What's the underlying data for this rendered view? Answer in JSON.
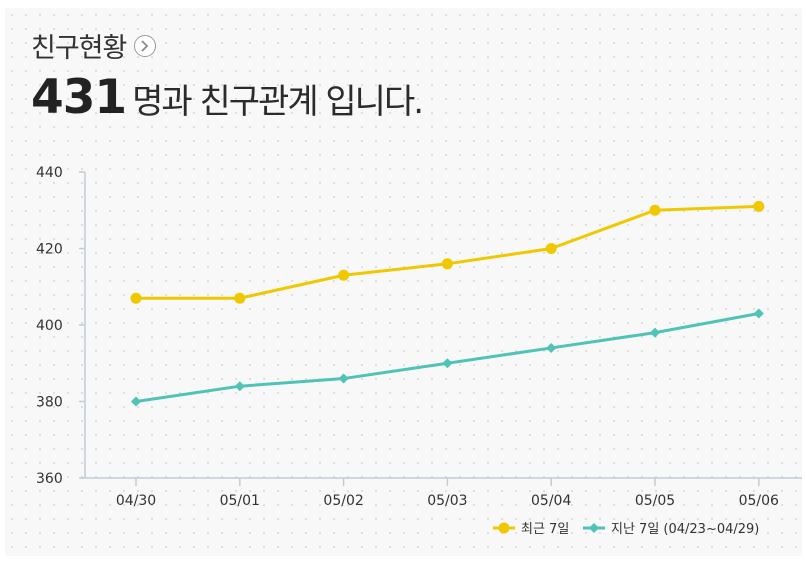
{
  "header": {
    "title": "친구현황",
    "count": "431",
    "count_suffix": "명과 친구관계 입니다."
  },
  "chart_data": {
    "type": "line",
    "categories": [
      "04/30",
      "05/01",
      "05/02",
      "05/03",
      "05/04",
      "05/05",
      "05/06"
    ],
    "yticks": [
      360,
      380,
      400,
      420,
      440
    ],
    "ylim": [
      360,
      440
    ],
    "grid": false,
    "legend_position": "bottom-right",
    "series": [
      {
        "name": "최근 7일",
        "color": "#f0c800",
        "marker": "circle",
        "values": [
          407,
          407,
          413,
          416,
          420,
          430,
          431
        ]
      },
      {
        "name": "지난 7일 (04/23~04/29)",
        "color": "#4fc4b6",
        "marker": "diamond",
        "values": [
          380,
          384,
          386,
          390,
          394,
          398,
          403
        ]
      }
    ]
  }
}
